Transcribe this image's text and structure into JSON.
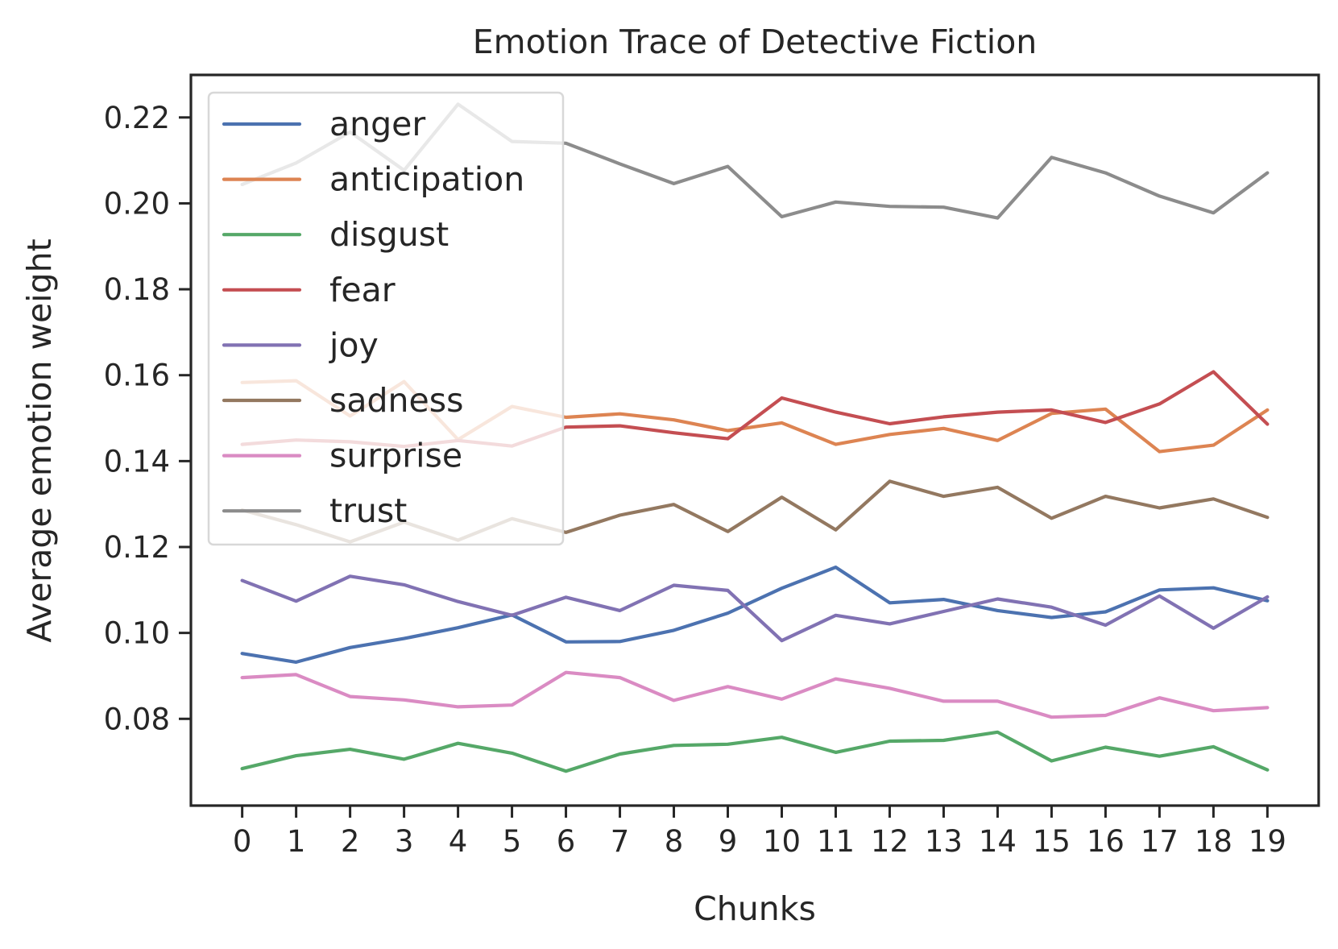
{
  "chart_data": {
    "type": "line",
    "title": "Emotion Trace of Detective Fiction",
    "xlabel": "Chunks",
    "ylabel": "Average emotion weight",
    "x": [
      0,
      1,
      2,
      3,
      4,
      5,
      6,
      7,
      8,
      9,
      10,
      11,
      12,
      13,
      14,
      15,
      16,
      17,
      18,
      19
    ],
    "xticks": [
      "0",
      "1",
      "2",
      "3",
      "4",
      "5",
      "6",
      "7",
      "8",
      "9",
      "10",
      "11",
      "12",
      "13",
      "14",
      "15",
      "16",
      "17",
      "18",
      "19"
    ],
    "xlim": [
      -0.95,
      19.95
    ],
    "ylim": [
      0.0598,
      0.2299
    ],
    "yticks": [
      "0.08",
      "0.10",
      "0.12",
      "0.14",
      "0.16",
      "0.18",
      "0.20",
      "0.22"
    ],
    "ytick_values": [
      0.08,
      0.1,
      0.12,
      0.14,
      0.16,
      0.18,
      0.2,
      0.22
    ],
    "grid": false,
    "legend_position": "upper left",
    "series": [
      {
        "name": "anger",
        "color": "#4c72b0",
        "values": [
          0.0952,
          0.0932,
          0.0966,
          0.0987,
          0.1012,
          0.1042,
          0.0979,
          0.098,
          0.1006,
          0.1046,
          0.1104,
          0.1153,
          0.107,
          0.1078,
          0.1052,
          0.1036,
          0.1049,
          0.11,
          0.1105,
          0.1075
        ]
      },
      {
        "name": "anticipation",
        "color": "#dd8452",
        "values": [
          0.1583,
          0.1587,
          0.1505,
          0.1585,
          0.145,
          0.1527,
          0.1502,
          0.151,
          0.1496,
          0.1471,
          0.1489,
          0.1439,
          0.1462,
          0.1476,
          0.1448,
          0.1511,
          0.1521,
          0.1422,
          0.1437,
          0.1519
        ]
      },
      {
        "name": "disgust",
        "color": "#55a868",
        "values": [
          0.0684,
          0.0714,
          0.0729,
          0.0706,
          0.0743,
          0.072,
          0.0678,
          0.0718,
          0.0738,
          0.0741,
          0.0757,
          0.0722,
          0.0748,
          0.075,
          0.0769,
          0.0702,
          0.0734,
          0.0713,
          0.0735,
          0.0681
        ]
      },
      {
        "name": "fear",
        "color": "#c44e52",
        "values": [
          0.1439,
          0.1449,
          0.1445,
          0.1434,
          0.1448,
          0.1435,
          0.1479,
          0.1482,
          0.1466,
          0.1452,
          0.1547,
          0.1514,
          0.1487,
          0.1503,
          0.1514,
          0.1519,
          0.149,
          0.1533,
          0.1608,
          0.1486
        ]
      },
      {
        "name": "joy",
        "color": "#8172b3",
        "values": [
          0.1122,
          0.1074,
          0.1132,
          0.1112,
          0.1073,
          0.1041,
          0.1083,
          0.1052,
          0.1111,
          0.1099,
          0.0982,
          0.1041,
          0.1021,
          0.105,
          0.1079,
          0.106,
          0.1018,
          0.1086,
          0.1011,
          0.1084
        ]
      },
      {
        "name": "sadness",
        "color": "#937860",
        "values": [
          0.1286,
          0.1252,
          0.1212,
          0.1258,
          0.1216,
          0.1266,
          0.1234,
          0.1274,
          0.1299,
          0.1236,
          0.1316,
          0.124,
          0.1353,
          0.1318,
          0.1339,
          0.1267,
          0.1318,
          0.1291,
          0.1312,
          0.1269
        ]
      },
      {
        "name": "surprise",
        "color": "#da8bc3",
        "values": [
          0.0896,
          0.0903,
          0.0852,
          0.0844,
          0.0828,
          0.0832,
          0.0908,
          0.0896,
          0.0843,
          0.0875,
          0.0846,
          0.0893,
          0.0871,
          0.0841,
          0.0841,
          0.0804,
          0.0808,
          0.0849,
          0.0819,
          0.0826
        ]
      },
      {
        "name": "trust",
        "color": "#8c8c8c",
        "values": [
          0.2044,
          0.2094,
          0.2166,
          0.2077,
          0.2231,
          0.2144,
          0.214,
          0.2092,
          0.2046,
          0.2086,
          0.1969,
          0.2003,
          0.1993,
          0.1991,
          0.1966,
          0.2107,
          0.2071,
          0.2017,
          0.1978,
          0.2071
        ]
      }
    ]
  }
}
